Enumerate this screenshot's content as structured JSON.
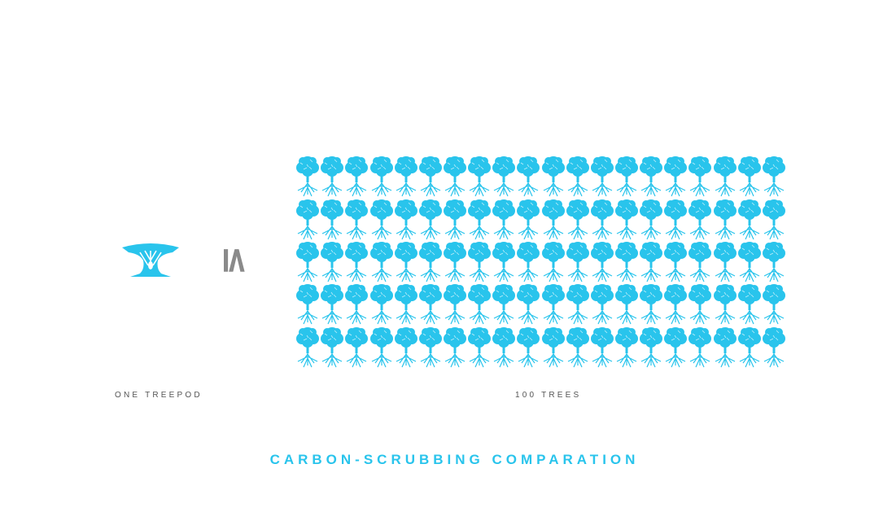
{
  "labels": {
    "left": "ONE TREEPOD",
    "right": "100  TREES"
  },
  "relation_symbol": "≤",
  "title": "CARBON-SCRUBBING COMPARATION",
  "grid": {
    "rows": 5,
    "columns": 20,
    "count": 100
  },
  "icons": {
    "treepod": "treepod-icon",
    "tree": "tree-icon"
  },
  "colors": {
    "accent": "#29c4ec",
    "symbol": "#8a8a8a",
    "text": "#555555"
  }
}
